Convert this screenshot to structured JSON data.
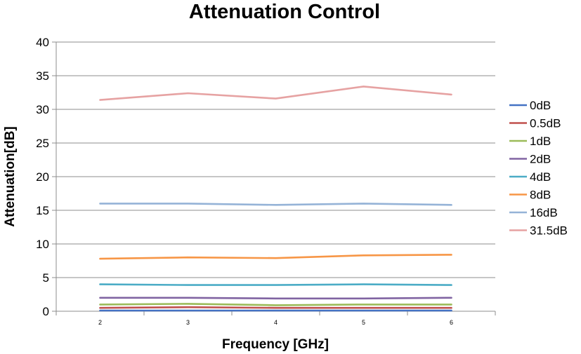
{
  "chart_data": {
    "type": "line",
    "title": "Attenuation Control",
    "xlabel": "Frequency [GHz]",
    "ylabel": "Attenuation[dB]",
    "categories": [
      "2",
      "3",
      "4",
      "5",
      "6"
    ],
    "ylim": [
      0,
      40
    ],
    "yticks": [
      0,
      5,
      10,
      15,
      20,
      25,
      30,
      35,
      40
    ],
    "grid": "horizontal",
    "legend": "right",
    "series": [
      {
        "name": "0dB",
        "color": "#4472C4",
        "values": [
          0.1,
          0.1,
          0.1,
          0.1,
          0.1
        ]
      },
      {
        "name": "0.5dB",
        "color": "#C0504D",
        "values": [
          0.5,
          0.6,
          0.5,
          0.5,
          0.5
        ]
      },
      {
        "name": "1dB",
        "color": "#9BBB59",
        "values": [
          1.0,
          1.1,
          0.9,
          1.0,
          1.0
        ]
      },
      {
        "name": "2dB",
        "color": "#8064A2",
        "values": [
          2.0,
          2.0,
          1.9,
          1.9,
          2.0
        ]
      },
      {
        "name": "4dB",
        "color": "#4BACC6",
        "values": [
          4.0,
          3.9,
          3.9,
          4.0,
          3.9
        ]
      },
      {
        "name": "8dB",
        "color": "#F79646",
        "values": [
          7.8,
          8.0,
          7.9,
          8.3,
          8.4
        ]
      },
      {
        "name": "16dB",
        "color": "#95B3D7",
        "values": [
          16.0,
          16.0,
          15.8,
          16.0,
          15.8
        ]
      },
      {
        "name": "31.5dB",
        "color": "#E6A2A2",
        "values": [
          31.4,
          32.4,
          31.6,
          33.4,
          32.2
        ]
      }
    ]
  }
}
